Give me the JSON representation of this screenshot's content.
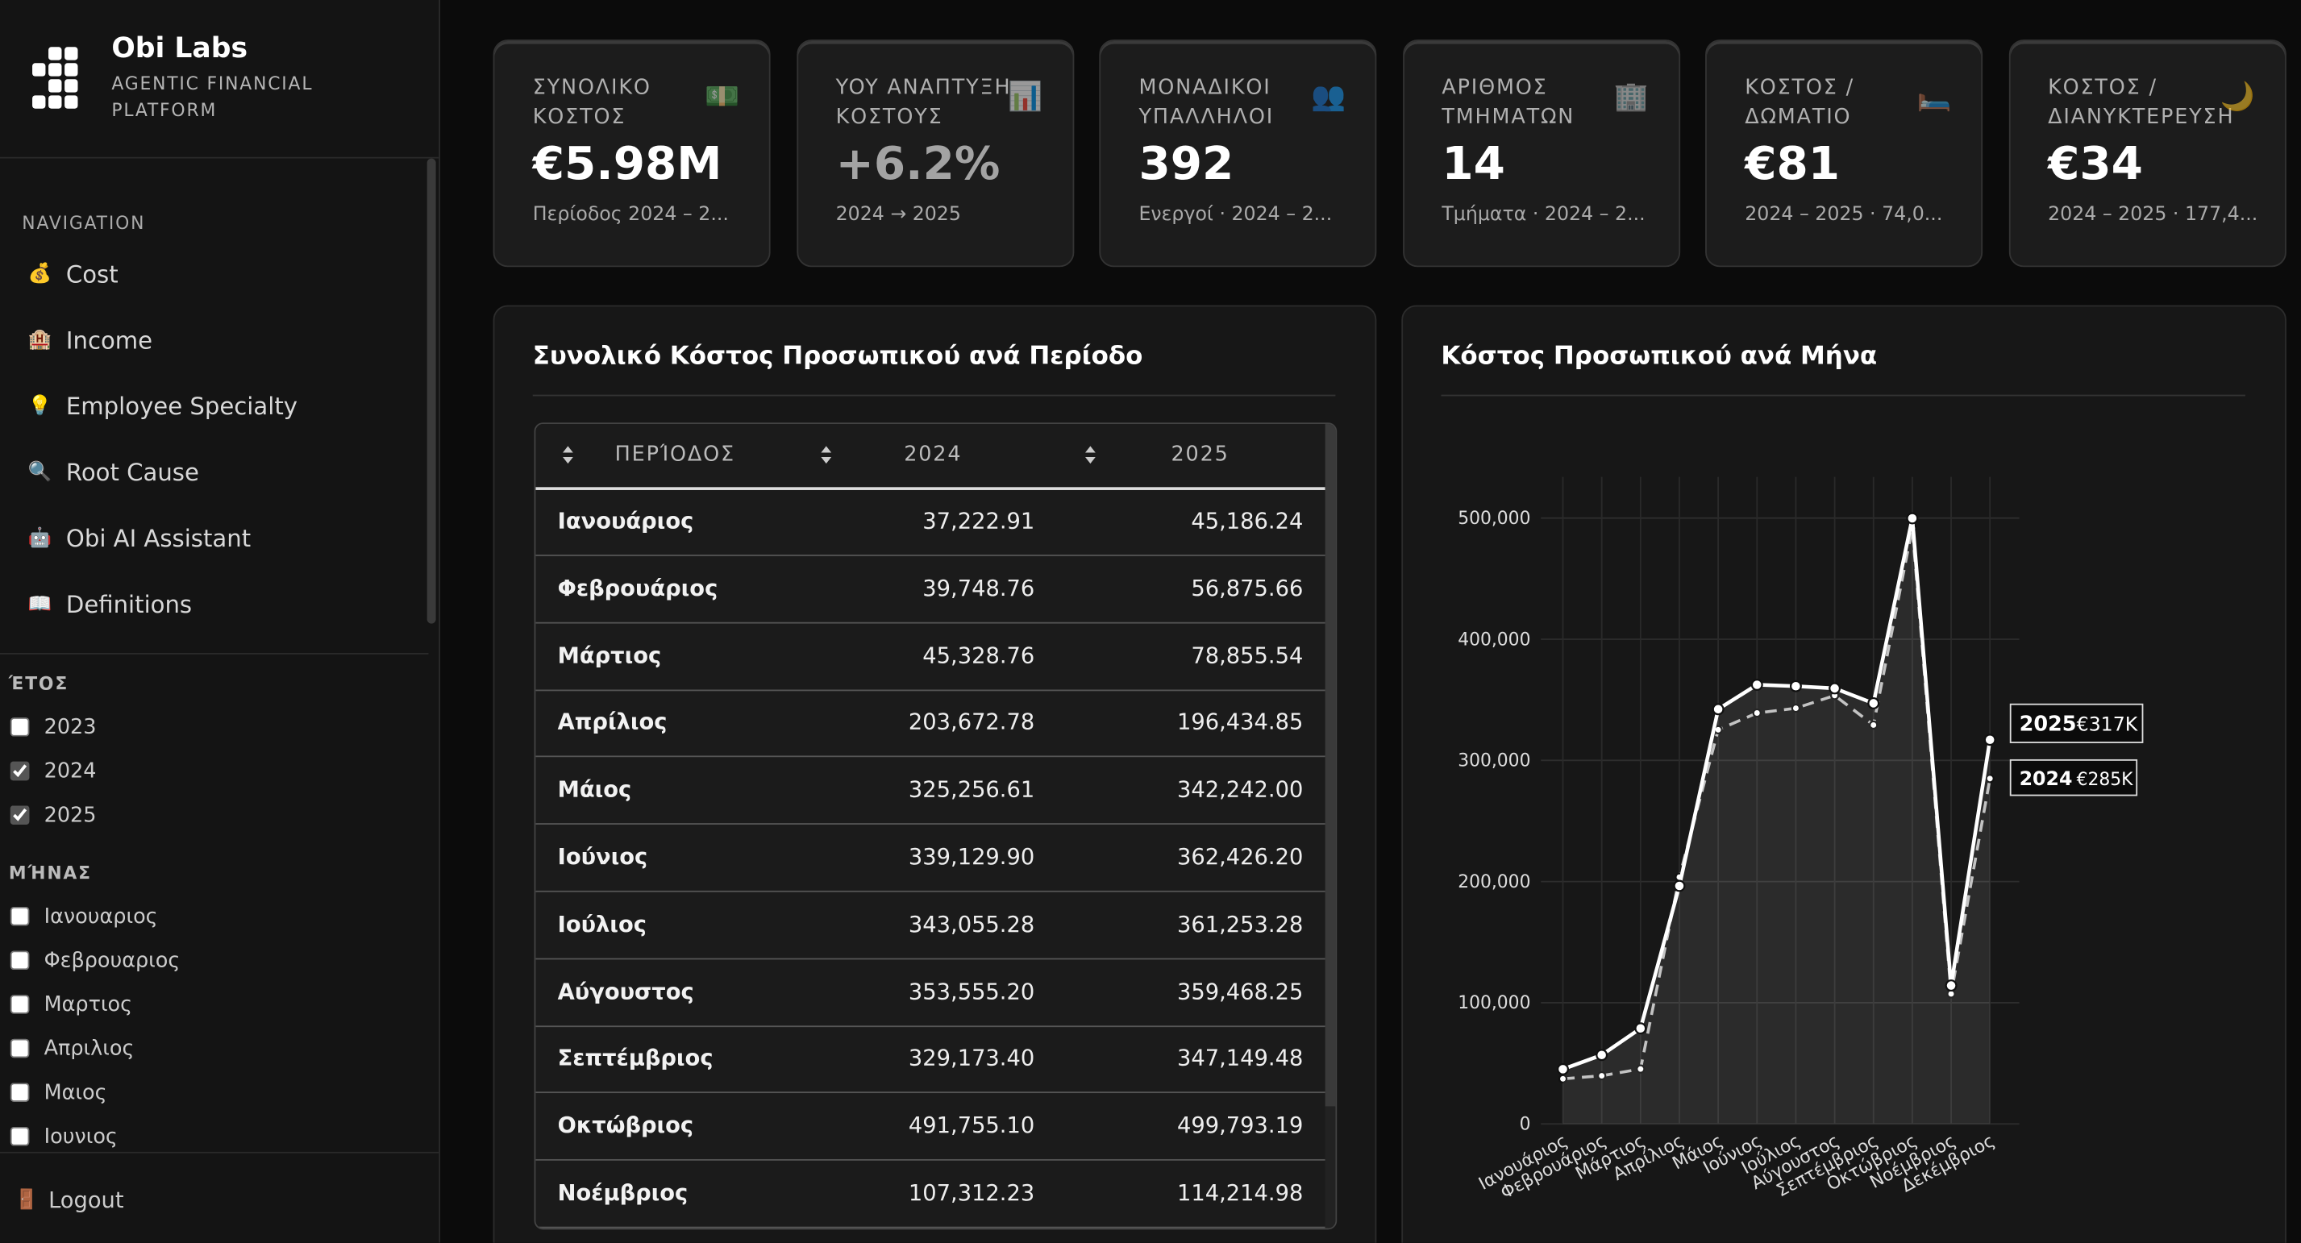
{
  "sidebar": {
    "brand": "Obi Labs",
    "tagline": "AGENTIC FINANCIAL PLATFORM",
    "nav_heading": "NAVIGATION",
    "nav": [
      {
        "icon": "💰",
        "label": "Cost"
      },
      {
        "icon": "🏨",
        "label": "Income"
      },
      {
        "icon": "💡",
        "label": "Employee Specialty"
      },
      {
        "icon": "🔍",
        "label": "Root Cause"
      },
      {
        "icon": "🤖",
        "label": "Obi AI Assistant"
      },
      {
        "icon": "📖",
        "label": "Definitions"
      }
    ],
    "filters": [
      {
        "heading": "ΈΤΟΣ",
        "options": [
          {
            "label": "2023",
            "checked": false
          },
          {
            "label": "2024",
            "checked": true
          },
          {
            "label": "2025",
            "checked": true
          }
        ]
      },
      {
        "heading": "ΜΉΝΑΣ",
        "options": [
          {
            "label": "Ιανουαριος",
            "checked": false
          },
          {
            "label": "Φεβρουαριος",
            "checked": false
          },
          {
            "label": "Μαρτιος",
            "checked": false
          },
          {
            "label": "Απριλιος",
            "checked": false
          },
          {
            "label": "Μαιος",
            "checked": false
          },
          {
            "label": "Ιουνιος",
            "checked": false
          }
        ]
      }
    ],
    "logout": {
      "icon": "🚪",
      "label": "Logout"
    }
  },
  "kpis": [
    {
      "label": "ΣΥΝΟΛΙΚΟ ΚΟΣΤΟΣ",
      "icon": "💵",
      "value": "€5.98M",
      "sub": "Περίοδος 2024 – 2..."
    },
    {
      "label": "YOY ΑΝΑΠΤΥΞΗ ΚΟΣΤΟΥΣ",
      "icon": "📊",
      "value": "+6.2%",
      "value_color": "#a3a3a3",
      "sub": "2024 → 2025"
    },
    {
      "label": "ΜΟΝΑΔΙΚΟΙ ΥΠΑΛΛΗΛΟΙ",
      "icon": "👥",
      "value": "392",
      "sub": "Ενεργοί · 2024 – 2..."
    },
    {
      "label": "ΑΡΙΘΜΟΣ ΤΜΗΜΑΤΩΝ",
      "icon": "🏢",
      "value": "14",
      "sub": "Τμήματα · 2024 – 2..."
    },
    {
      "label": "ΚΟΣΤΟΣ / ΔΩΜΑΤΙΟ",
      "icon": "🛏️",
      "value": "€81",
      "sub": "2024 – 2025 · 74,0..."
    },
    {
      "label": "ΚΟΣΤΟΣ / ΔΙΑΝΥΚΤΕΡΕΥΣΗ",
      "icon": "🌙",
      "value": "€34",
      "sub": "2024 – 2025 · 177,4..."
    }
  ],
  "table": {
    "title": "Συνολικό Κόστος Προσωπικού ανά Περίοδο",
    "columns": [
      "ΠΕΡΊΟΔΟΣ",
      "2024",
      "2025"
    ],
    "rows": [
      [
        "Ιανουάριος",
        "37,222.91",
        "45,186.24"
      ],
      [
        "Φεβρουάριος",
        "39,748.76",
        "56,875.66"
      ],
      [
        "Μάρτιος",
        "45,328.76",
        "78,855.54"
      ],
      [
        "Απρίλιος",
        "203,672.78",
        "196,434.85"
      ],
      [
        "Μάιος",
        "325,256.61",
        "342,242.00"
      ],
      [
        "Ιούνιος",
        "339,129.90",
        "362,426.20"
      ],
      [
        "Ιούλιος",
        "343,055.28",
        "361,253.28"
      ],
      [
        "Αύγουστος",
        "353,555.20",
        "359,468.25"
      ],
      [
        "Σεπτέμβριος",
        "329,173.40",
        "347,149.48"
      ],
      [
        "Οκτώβριος",
        "491,755.10",
        "499,793.19"
      ],
      [
        "Νοέμβριος",
        "107,312.23",
        "114,214.98"
      ]
    ]
  },
  "chart_data": {
    "type": "line",
    "title": "Κόστος Προσωπικού ανά Μήνα",
    "categories": [
      "Ιανουάριος",
      "Φεβρουάριος",
      "Μάρτιος",
      "Απρίλιος",
      "Μάιος",
      "Ιούνιος",
      "Ιούλιος",
      "Αύγουστος",
      "Σεπτέμβριος",
      "Οκτώβριος",
      "Νοέμβριος",
      "Δεκέμβριος"
    ],
    "series": [
      {
        "name": "2025",
        "color": "#ffffff",
        "line_style": "solid",
        "area": true,
        "values": [
          45186.24,
          56875.66,
          78855.54,
          196434.85,
          342242.0,
          362426.2,
          361253.28,
          359468.25,
          347149.48,
          499793.19,
          114214.98,
          317000
        ],
        "value_labels": [
          null,
          null,
          null,
          null,
          null,
          null,
          null,
          null,
          null,
          null,
          null,
          "€317K"
        ]
      },
      {
        "name": "2024",
        "color": "#bdbdbd",
        "line_style": "dashed",
        "area": false,
        "values": [
          37222.91,
          39748.76,
          45328.76,
          203672.78,
          325256.61,
          339129.9,
          343055.28,
          353555.2,
          329173.4,
          491755.1,
          107312.23,
          285000
        ],
        "value_labels": [
          null,
          null,
          null,
          null,
          null,
          null,
          null,
          null,
          null,
          null,
          null,
          "€285K"
        ]
      }
    ],
    "ylim": [
      0,
      534000
    ],
    "yticks": [
      0,
      {
        "value": 100000,
        "label": "100,000"
      },
      {
        "value": 200000,
        "label": "200,000"
      },
      {
        "value": 300000,
        "label": "300,000"
      },
      {
        "value": 400000,
        "label": "400,000"
      },
      {
        "value": 500000,
        "label": "500,000"
      }
    ],
    "grid": true
  }
}
